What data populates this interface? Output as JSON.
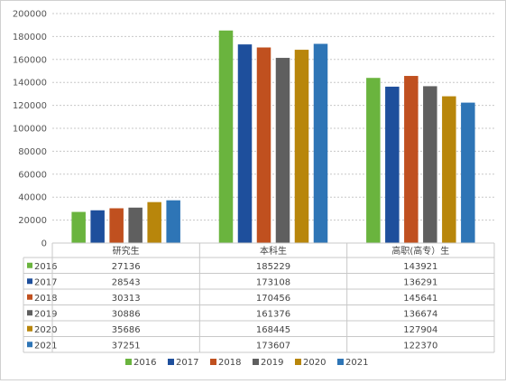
{
  "chart_data": {
    "type": "bar",
    "categories": [
      "研究生",
      "本科生",
      "高职(高专）生"
    ],
    "series": [
      {
        "name": "2016",
        "color": "#6ab43e",
        "values": [
          27136,
          185229,
          143921
        ]
      },
      {
        "name": "2017",
        "color": "#1e4f9c",
        "values": [
          28543,
          173108,
          136291
        ]
      },
      {
        "name": "2018",
        "color": "#c0501f",
        "values": [
          30313,
          170456,
          145641
        ]
      },
      {
        "name": "2019",
        "color": "#5f5f5f",
        "values": [
          30886,
          161376,
          136674
        ]
      },
      {
        "name": "2020",
        "color": "#b8860b",
        "values": [
          35686,
          168445,
          127904
        ]
      },
      {
        "name": "2021",
        "color": "#2e75b6",
        "values": [
          37251,
          173607,
          122370
        ]
      }
    ],
    "yticks": [
      0,
      20000,
      40000,
      60000,
      80000,
      100000,
      120000,
      140000,
      160000,
      180000,
      200000
    ],
    "ylim": [
      0,
      200000
    ],
    "grid": true,
    "legend": "bottom",
    "data_table": true
  }
}
